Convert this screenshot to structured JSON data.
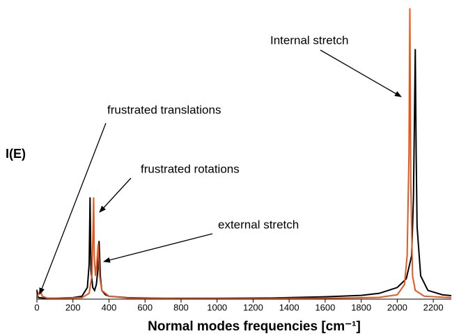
{
  "chart_data": {
    "type": "line",
    "y_label": "I(E)",
    "x_label": "Normal modes frequencies [cm⁻¹]",
    "annotations": [
      "Internal stretch",
      "frustrated translations",
      "frustrated rotations",
      "external stretch"
    ],
    "xlim": [
      0,
      2300
    ],
    "xticks": [
      0,
      200,
      400,
      600,
      800,
      1000,
      1200,
      1400,
      1600,
      1800,
      2000,
      2200
    ],
    "ylim": [
      0,
      100
    ],
    "series": [
      {
        "color": "#000000",
        "x": [
          0,
          5,
          10,
          50,
          100,
          200,
          250,
          280,
          290,
          295,
          300,
          310,
          320,
          330,
          338,
          345,
          352,
          360,
          380,
          400,
          500,
          700,
          1000,
          1300,
          1600,
          1800,
          1900,
          2000,
          2050,
          2080,
          2090,
          2095,
          2100,
          2105,
          2110,
          2130,
          2170,
          2250,
          2300
        ],
        "values": [
          3,
          1,
          0.5,
          0.3,
          0.3,
          0.5,
          1,
          4,
          12,
          35,
          10,
          4,
          3,
          5,
          10,
          20,
          8,
          3,
          1.5,
          1,
          0.5,
          0.3,
          0.3,
          0.4,
          0.8,
          1.3,
          2,
          4,
          7,
          15,
          35,
          60,
          86,
          50,
          25,
          8,
          3,
          1.5,
          1.2
        ]
      },
      {
        "color": "#e8561e",
        "x": [
          0,
          10,
          20,
          30,
          60,
          150,
          250,
          290,
          305,
          312,
          315,
          318,
          325,
          332,
          340,
          348,
          360,
          400,
          500,
          800,
          1200,
          1600,
          1900,
          2000,
          2040,
          2055,
          2065,
          2070,
          2075,
          2085,
          2100,
          2150,
          2300
        ],
        "values": [
          0.5,
          2,
          3,
          1,
          0.3,
          0.3,
          0.5,
          2,
          8,
          25,
          35,
          15,
          8,
          12,
          19,
          8,
          3,
          1,
          0.4,
          0.2,
          0.2,
          0.3,
          0.6,
          1.5,
          5,
          15,
          50,
          100,
          40,
          8,
          3,
          1,
          0.5
        ]
      }
    ]
  }
}
